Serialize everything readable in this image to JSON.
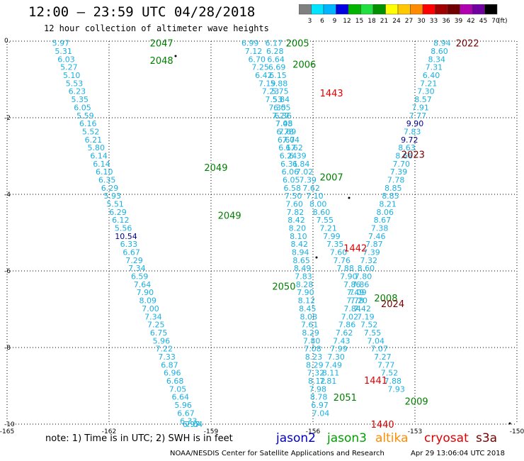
{
  "header": {
    "title": "12:00 – 23:59 UTC 04/28/2018",
    "subtitle": "12 hour collection of altimeter wave heights"
  },
  "colorbar": {
    "ticks": [
      "3",
      "6",
      "9",
      "12",
      "15",
      "18",
      "21",
      "24",
      "27",
      "30",
      "33",
      "36",
      "39",
      "42",
      "45",
      "70"
    ],
    "unit": "(ft)",
    "colors": [
      "#808080",
      "#00e5ff",
      "#00b4ff",
      "#0000e0",
      "#00b400",
      "#20e040",
      "#009000",
      "#ffff00",
      "#ffc800",
      "#ff8c00",
      "#ff0000",
      "#a00000",
      "#700000",
      "#b000b0",
      "#7000a0",
      "#000000"
    ]
  },
  "footer": {
    "note": "note:  1) Time is in UTC;  2) SWH is in feet",
    "legend": [
      {
        "name": "jason2",
        "color": "#0000c8"
      },
      {
        "name": "jason3",
        "color": "#00a000"
      },
      {
        "name": "altika",
        "color": "#ff8c00"
      },
      {
        "name": "cryosat",
        "color": "#e00000"
      },
      {
        "name": "s3a",
        "color": "#780000"
      }
    ],
    "credit": "NOAA/NESDIS Center for Satellite Applications and Research",
    "timestamp": "Apr 29 13:06:04 UTC 2018"
  },
  "chart_data": {
    "type": "scatter",
    "xlim": [
      -165,
      -150
    ],
    "ylim": [
      -10,
      0
    ],
    "x_ticks": [
      "-165",
      "-162",
      "-159",
      "-156",
      "-153",
      "-150"
    ],
    "y_ticks": [
      "0.",
      "-2",
      "-4",
      "-6",
      "-8",
      "-10"
    ],
    "grid": true,
    "time_labels": [
      {
        "t": "2047",
        "x": -160.8,
        "y": -0.05,
        "color": "#008000"
      },
      {
        "t": "2048",
        "x": -160.8,
        "y": -0.5,
        "color": "#008000"
      },
      {
        "t": "2049",
        "x": -159.2,
        "y": -3.3,
        "color": "#008000"
      },
      {
        "t": "2049",
        "x": -158.8,
        "y": -4.55,
        "color": "#008000"
      },
      {
        "t": "2050",
        "x": -157.2,
        "y": -6.4,
        "color": "#008000"
      },
      {
        "t": "2051",
        "x": -155.4,
        "y": -9.3,
        "color": "#008000"
      },
      {
        "t": "2005",
        "x": -156.8,
        "y": -0.05,
        "color": "#008000"
      },
      {
        "t": "2006",
        "x": -156.6,
        "y": -0.6,
        "color": "#008000"
      },
      {
        "t": "2007",
        "x": -155.8,
        "y": -3.55,
        "color": "#008000"
      },
      {
        "t": "2008",
        "x": -154.2,
        "y": -6.7,
        "color": "#008000"
      },
      {
        "t": "2009",
        "x": -153.3,
        "y": -9.4,
        "color": "#008000"
      },
      {
        "t": "1443",
        "x": -155.8,
        "y": -1.35,
        "color": "#e00000"
      },
      {
        "t": "1442",
        "x": -155.1,
        "y": -5.4,
        "color": "#e00000"
      },
      {
        "t": "1441",
        "x": -154.5,
        "y": -8.85,
        "color": "#e00000"
      },
      {
        "t": "1440",
        "x": -154.3,
        "y": -10.0,
        "color": "#e00000"
      },
      {
        "t": "2022",
        "x": -151.8,
        "y": -0.05,
        "color": "#780000"
      },
      {
        "t": "2023",
        "x": -153.4,
        "y": -2.95,
        "color": "#780000"
      },
      {
        "t": "2024",
        "x": -154.0,
        "y": -6.85,
        "color": "#780000"
      }
    ],
    "series": [
      {
        "name": "jason3",
        "x": [
          -163.42,
          -163.34,
          -163.26,
          -163.18,
          -163.1,
          -163.02,
          -162.94,
          -162.86,
          -162.78,
          -162.7,
          -162.62,
          -162.54,
          -162.46,
          -162.38,
          -162.3,
          -162.22,
          -162.14,
          -162.06,
          -161.98,
          -161.9,
          -161.82,
          -161.74,
          -161.66,
          -161.58,
          -161.5,
          -161.42,
          -161.34,
          -161.26,
          -161.18,
          -161.1,
          -161.02,
          -160.94,
          -160.86,
          -160.78,
          -160.7,
          -160.62,
          -160.54,
          -160.46,
          -160.38,
          -160.3,
          -160.22,
          -160.14,
          -160.06,
          -159.98,
          -159.9,
          -159.82,
          -159.74,
          -159.66,
          -159.58,
          -159.5,
          -159.42,
          -159.34,
          -159.26,
          -159.18,
          -159.1
        ],
        "y": [
          -0.05,
          -0.26,
          -0.47,
          -0.68,
          -0.89,
          -1.1,
          -1.31,
          -1.52,
          -1.73,
          -1.94,
          -2.15,
          -2.36,
          -2.57,
          -2.78,
          -2.99,
          -3.2,
          -3.41,
          -3.62,
          -3.83,
          -4.04,
          -4.25,
          -4.46,
          -4.67,
          -4.88,
          -5.09,
          -5.3,
          -5.51,
          -5.72,
          -5.93,
          -6.14,
          -6.35,
          -6.56,
          -6.77,
          -6.98,
          -7.19,
          -7.4,
          -7.61,
          -7.82,
          -8.03,
          -8.24,
          -8.45,
          -8.66,
          -8.87,
          -9.08,
          -9.29,
          -9.5,
          -9.71,
          -9.92,
          -10.0,
          -10.0,
          -10.0,
          -10.0,
          -10.0,
          -10.0,
          -10.0
        ],
        "labels": [
          "5.97",
          "5.31",
          "6.03",
          "5.27",
          "5.10",
          "5.53",
          "6.23",
          "5.35",
          "6.05",
          "5.59",
          "6.16",
          "5.52",
          "6.21",
          "5.80",
          "6.14",
          "6.14",
          "6.10",
          "6.35",
          "6.29",
          "5.93",
          "5.51",
          "6.29",
          "6.12",
          "5.56",
          "10.54",
          "6.33",
          "6.67",
          "7.29",
          "7.34",
          "6.59",
          "7.64",
          "7.90",
          "8.09",
          "7.00",
          "7.34",
          "7.25",
          "6.75",
          "5.96",
          "7.22",
          "7.33",
          "6.87",
          "6.96",
          "6.68",
          "7.05",
          "6.64",
          "5.96",
          "6.67",
          "6.33",
          "6.97",
          "7.04",
          "",
          "",
          "",
          "",
          ""
        ]
      },
      {
        "name": "jason3_b",
        "x": [
          -157.15,
          -157.12,
          -157.09,
          -157.06,
          -157.03,
          -157.0,
          -156.97,
          -156.94,
          -156.91,
          -156.88,
          -156.85,
          -156.82,
          -156.79,
          -156.76,
          -156.73,
          -156.7,
          -156.67,
          -156.64,
          -156.61,
          -156.58,
          -156.55,
          -156.52,
          -156.49,
          -156.46,
          -156.43,
          -156.4,
          -156.37,
          -156.34,
          -156.31,
          -156.28,
          -156.25,
          -156.22,
          -156.19,
          -156.16,
          -156.13,
          -156.1,
          -156.07,
          -156.04,
          -156.01,
          -155.98,
          -155.95,
          -155.92,
          -155.89,
          -155.86,
          -155.83,
          -155.8,
          -155.77
        ],
        "y": [
          -0.05,
          -0.26,
          -0.47,
          -0.68,
          -0.89,
          -1.1,
          -1.31,
          -1.52,
          -1.73,
          -1.94,
          -2.15,
          -2.36,
          -2.57,
          -2.78,
          -2.99,
          -3.2,
          -3.41,
          -3.62,
          -3.83,
          -4.04,
          -4.25,
          -4.46,
          -4.67,
          -4.88,
          -5.09,
          -5.3,
          -5.51,
          -5.72,
          -5.93,
          -6.14,
          -6.35,
          -6.56,
          -6.77,
          -6.98,
          -7.19,
          -7.4,
          -7.61,
          -7.82,
          -8.03,
          -8.24,
          -8.45,
          -8.66,
          -8.87,
          -9.08,
          -9.29,
          -9.5,
          -9.71
        ],
        "labels": [
          "6.17",
          "6.28",
          "6.64",
          "6.69",
          "6.15",
          "5.88",
          "5.75",
          "5.84",
          "6.05",
          "6.36",
          "7.08",
          "6.78",
          "6.67",
          "6.17",
          "6.24",
          "6.31",
          "6.06",
          "6.05",
          "6.58",
          "7.50",
          "7.60",
          "7.82",
          "8.42",
          "8.20",
          "8.10",
          "8.42",
          "8.94",
          "8.65",
          "8.49",
          "7.83",
          "8.28",
          "7.90",
          "8.12",
          "8.45",
          "8.08",
          "7.61",
          "8.29",
          "7.80",
          "7.08",
          "8.23",
          "8.29",
          "7.32",
          "8.12",
          "7.98",
          "8.78",
          "6.97",
          "7.04"
        ]
      },
      {
        "name": "jason3_c",
        "x": [
          -152.2,
          -152.28,
          -152.36,
          -152.44,
          -152.52,
          -152.6,
          -152.68,
          -152.76,
          -152.84,
          -152.92,
          -153.0,
          -153.08,
          -153.16,
          -153.24,
          -153.32,
          -153.4,
          -153.48,
          -153.56,
          -153.64,
          -153.72,
          -153.8,
          -153.88,
          -153.96,
          -154.04,
          -154.12,
          -154.2,
          -154.28,
          -154.36,
          -154.44,
          -154.52,
          -154.6,
          -154.68,
          -154.76,
          -154.84,
          -154.92,
          -155.0,
          -155.08,
          -155.16,
          -155.24,
          -155.32,
          -155.4,
          -155.48,
          -155.56,
          -155.64,
          -155.72,
          -155.8,
          -155.88
        ],
        "y": [
          -0.05,
          -0.26,
          -0.47,
          -0.68,
          -0.89,
          -1.1,
          -1.31,
          -1.52,
          -1.73,
          -1.94,
          -2.15,
          -2.36,
          -2.57,
          -2.78,
          -2.99,
          -3.2,
          -3.41,
          -3.62,
          -3.83,
          -4.04,
          -4.25,
          -4.46,
          -4.67,
          -4.88,
          -5.09,
          -5.3,
          -5.51,
          -5.72,
          -5.93,
          -6.14,
          -6.35,
          -6.56,
          -6.77,
          -6.98,
          -7.19,
          -7.4,
          -7.61,
          -7.82,
          -8.03,
          -8.24,
          -8.45,
          -8.66,
          -8.87,
          -9.08,
          -9.29,
          -9.5,
          -9.71
        ],
        "labels": [
          "8.94",
          "8.60",
          "8.34",
          "7.31",
          "6.40",
          "7.21",
          "7.30",
          "8.57",
          "7.91",
          "7.77",
          "9.90",
          "7.83",
          "9.72",
          "8.63",
          "8.66",
          "7.70",
          "7.39",
          "7.78",
          "8.85",
          "8.85",
          "8.21",
          "8.06",
          "8.67",
          "7.38",
          "7.46",
          "7.87",
          "7.39",
          "7.32",
          "8.60",
          "7.80",
          "7.86",
          "7.09",
          "7.78",
          "7.84",
          "7.02",
          "7.86",
          "7.62",
          "7.43",
          "7.99",
          "7.30",
          "7.49",
          "8.11",
          "7.81",
          "",
          "",
          "",
          ""
        ]
      },
      {
        "name": "jason3_d",
        "x": [
          -157.85,
          -157.75,
          -157.65,
          -157.55,
          -157.45,
          -157.35,
          -157.25,
          -157.15,
          -157.05,
          -156.95,
          -156.85,
          -156.75,
          -156.65,
          -156.55,
          -156.45,
          -156.35,
          -156.25,
          -156.15,
          -156.05,
          -155.95,
          -155.85,
          -155.75,
          -155.65,
          -155.55,
          -155.45,
          -155.35,
          -155.25,
          -155.15,
          -155.05,
          -154.95,
          -154.85,
          -154.75,
          -154.65,
          -154.55,
          -154.45,
          -154.35,
          -154.25,
          -154.15,
          -154.05,
          -153.95,
          -153.85,
          -153.75,
          -153.65,
          -153.55,
          -153.45,
          -153.35,
          -153.25
        ],
        "y": [
          -0.05,
          -0.26,
          -0.47,
          -0.68,
          -0.89,
          -1.1,
          -1.31,
          -1.52,
          -1.73,
          -1.94,
          -2.15,
          -2.36,
          -2.57,
          -2.78,
          -2.99,
          -3.2,
          -3.41,
          -3.62,
          -3.83,
          -4.04,
          -4.25,
          -4.46,
          -4.67,
          -4.88,
          -5.09,
          -5.3,
          -5.51,
          -5.72,
          -5.93,
          -6.14,
          -6.35,
          -6.56,
          -6.77,
          -6.98,
          -7.19,
          -7.4,
          -7.61,
          -7.82,
          -8.03,
          -8.24,
          -8.45,
          -8.66,
          -8.87,
          -9.08,
          -9.29,
          -9.5,
          -9.71
        ],
        "labels": [
          "6.99",
          "7.12",
          "6.70",
          "7.25",
          "6.42",
          "7.19",
          "7.23",
          "7.53",
          "7.35",
          "7.27",
          "7.45",
          "7.69",
          "7.04",
          "6.62",
          "6.39",
          "6.84",
          "7.02",
          "7.39",
          "7.62",
          "7.10",
          "8.00",
          "8.60",
          "7.55",
          "7.21",
          "7.99",
          "7.35",
          "7.60",
          "7.76",
          "7.88",
          "7.90",
          "7.86",
          "7.49",
          "7.20",
          "7.42",
          "7.19",
          "7.52",
          "7.55",
          "7.04",
          "7.07",
          "7.27",
          "7.77",
          "7.52",
          "7.88",
          "7.93",
          "",
          "",
          ""
        ]
      }
    ]
  }
}
